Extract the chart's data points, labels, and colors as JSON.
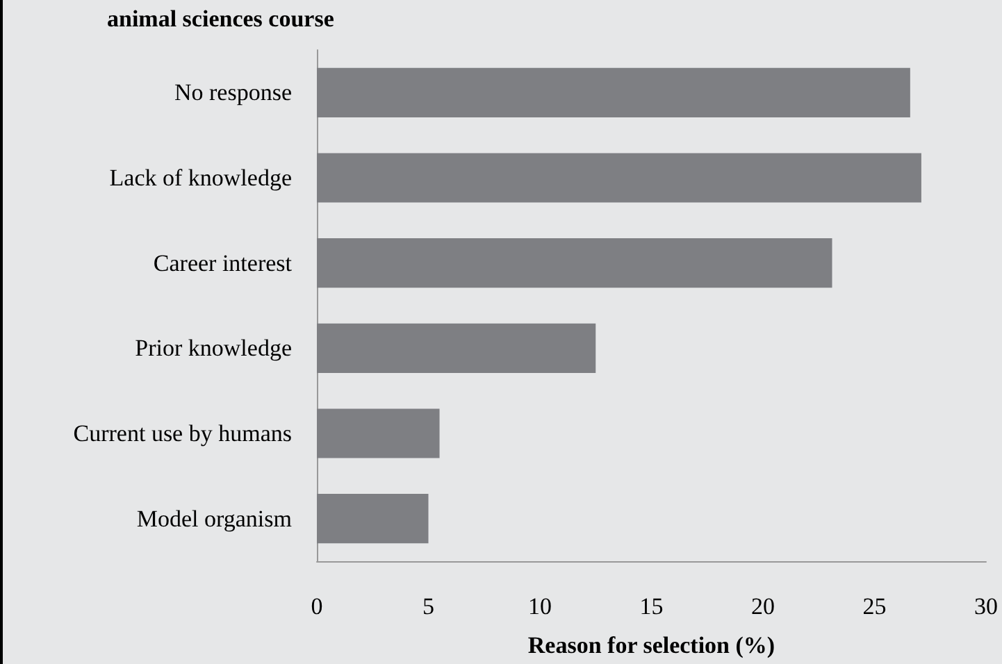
{
  "chart_data": {
    "type": "bar",
    "orientation": "horizontal",
    "title": "animal sciences course",
    "categories": [
      "No response",
      "Lack of knowledge",
      "Career interest",
      "Prior knowledge",
      "Current use by humans",
      "Model organism"
    ],
    "values": [
      26.6,
      27.1,
      23.1,
      12.5,
      5.5,
      5.0
    ],
    "color": "#7e7f83",
    "xlim": [
      0,
      30
    ],
    "xticks": [
      0,
      5,
      10,
      15,
      20,
      25,
      30
    ],
    "xlabel": "Reason for selection (%)",
    "grid": false
  }
}
